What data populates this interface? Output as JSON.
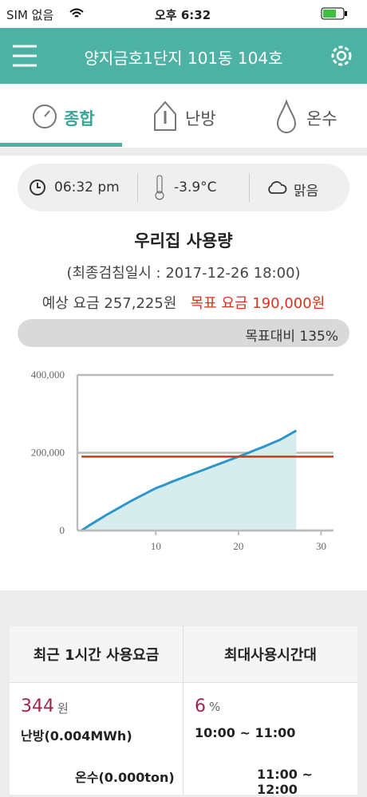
{
  "status_bar": {
    "carrier": "SIM 없음",
    "time": "오후 6:32"
  },
  "header": {
    "title": "양지금호1단지 101동 104호"
  },
  "tabs": [
    "종합",
    "난방",
    "온수"
  ],
  "weather": {
    "time": "06:32 pm",
    "temperature": "-3.9°C",
    "sky": "맑음"
  },
  "usage": {
    "title": "우리집 사용량",
    "subtitle": "(최종검침일시 : 2017-12-26 18:00)",
    "expected": "예상 요금 257,225원",
    "target": "목표 요금 190,000원",
    "progress": "목표대비 135%"
  },
  "chart_data": {
    "type": "line",
    "x": [
      1,
      2,
      3,
      4,
      5,
      6,
      7,
      8,
      9,
      10,
      11,
      12,
      13,
      14,
      15,
      16,
      17,
      18,
      19,
      20,
      21,
      22,
      23,
      24,
      25,
      26,
      27
    ],
    "series": [
      {
        "color": "#2f96cc",
        "fill": "#d7ecec",
        "values": [
          0,
          14000,
          27000,
          40000,
          52000,
          64000,
          76000,
          87000,
          98000,
          109000,
          117000,
          126000,
          134000,
          142000,
          150000,
          158000,
          166000,
          174000,
          182000,
          190000,
          198000,
          207000,
          215000,
          224000,
          233000,
          245000,
          257000
        ]
      }
    ],
    "target_line": 190000,
    "target_color": "#d9321f",
    "xlim": [
      0.5,
      31.5
    ],
    "xticks": [
      10,
      20,
      30
    ],
    "ylim": [
      0,
      400000
    ],
    "yticks": [
      0,
      {
        "value": 200000,
        "label": "200,000"
      },
      {
        "value": 400000,
        "label": "400,000"
      }
    ],
    "grid": true
  },
  "cards": [
    {
      "title": "최근 1시간 사용요금",
      "value": "344",
      "unit": "원",
      "line1": "난방(0.004MWh)",
      "line2": "온수(0.000ton)"
    },
    {
      "title": "최대사용시간대",
      "value": "6",
      "unit": "%",
      "line1": "10:00 ~ 11:00",
      "line2": "11:00 ~ 12:00"
    }
  ]
}
